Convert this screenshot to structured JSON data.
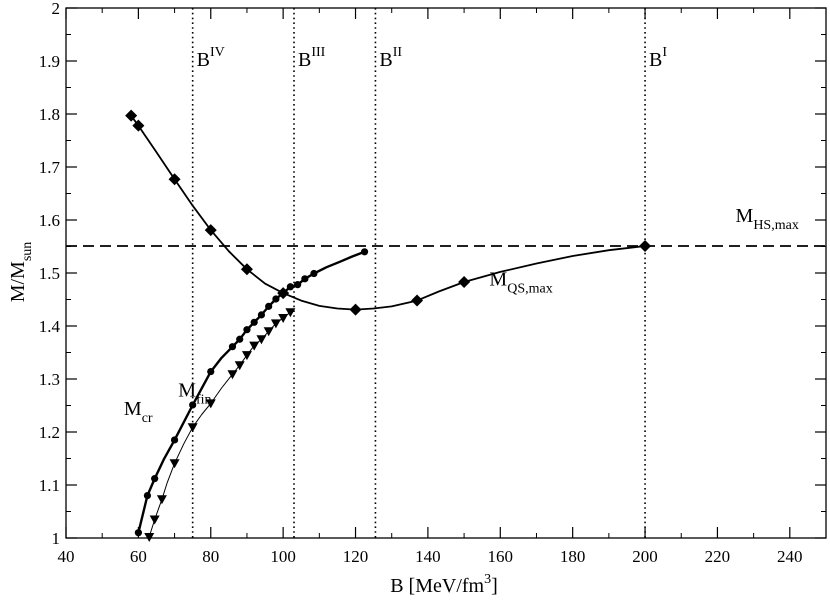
{
  "chart_data": {
    "type": "line",
    "xlabel": "B [MeV/fm",
    "xlabel_sup": "3",
    "xlabel_close": "]",
    "ylabel": "M/M",
    "ylabel_sub": "sun",
    "xlim": [
      40,
      250
    ],
    "ylim": [
      1.0,
      2.0
    ],
    "xticks": [
      40,
      60,
      80,
      100,
      120,
      140,
      160,
      180,
      200,
      220,
      240
    ],
    "yticks": [
      1,
      1.1,
      1.2,
      1.3,
      1.4,
      1.5,
      1.6,
      1.7,
      1.8,
      1.9,
      2
    ],
    "grid": false,
    "reference_lines": {
      "horizontal": {
        "y": 1.551,
        "style": "dashed",
        "label": "M",
        "label_sub": "HS,max"
      },
      "vertical": [
        {
          "x": 75,
          "label": "B",
          "label_sup": "IV"
        },
        {
          "x": 103,
          "label": "B",
          "label_sup": "III"
        },
        {
          "x": 125.5,
          "label": "B",
          "label_sup": "II"
        },
        {
          "x": 200,
          "label": "B",
          "label_sup": "I"
        }
      ]
    },
    "series": [
      {
        "name": "M_QS,max",
        "label": "M",
        "label_sub": "QS,max",
        "marker": "diamond",
        "markers": [
          {
            "x": 58,
            "y": 1.797
          },
          {
            "x": 60,
            "y": 1.778
          },
          {
            "x": 70,
            "y": 1.677
          },
          {
            "x": 80,
            "y": 1.581
          },
          {
            "x": 90,
            "y": 1.507
          },
          {
            "x": 100,
            "y": 1.462
          },
          {
            "x": 120,
            "y": 1.431
          },
          {
            "x": 137,
            "y": 1.448
          },
          {
            "x": 150,
            "y": 1.483
          },
          {
            "x": 200,
            "y": 1.551
          }
        ],
        "curve": [
          [
            58,
            1.797
          ],
          [
            60,
            1.778
          ],
          [
            65,
            1.728
          ],
          [
            70,
            1.677
          ],
          [
            75,
            1.627
          ],
          [
            80,
            1.581
          ],
          [
            85,
            1.541
          ],
          [
            90,
            1.507
          ],
          [
            95,
            1.48
          ],
          [
            100,
            1.462
          ],
          [
            105,
            1.448
          ],
          [
            110,
            1.438
          ],
          [
            115,
            1.433
          ],
          [
            120,
            1.431
          ],
          [
            125,
            1.433
          ],
          [
            130,
            1.437
          ],
          [
            137,
            1.448
          ],
          [
            143,
            1.465
          ],
          [
            150,
            1.483
          ],
          [
            160,
            1.502
          ],
          [
            170,
            1.518
          ],
          [
            180,
            1.532
          ],
          [
            190,
            1.543
          ],
          [
            200,
            1.551
          ]
        ]
      },
      {
        "name": "M_cr",
        "label": "M",
        "label_sub": "cr",
        "marker": "circle",
        "markers": [
          {
            "x": 60,
            "y": 1.01
          },
          {
            "x": 62.5,
            "y": 1.08
          },
          {
            "x": 64.5,
            "y": 1.112
          },
          {
            "x": 70,
            "y": 1.185
          },
          {
            "x": 75,
            "y": 1.251
          },
          {
            "x": 80,
            "y": 1.314
          },
          {
            "x": 86,
            "y": 1.361
          },
          {
            "x": 88,
            "y": 1.375
          },
          {
            "x": 90,
            "y": 1.393
          },
          {
            "x": 92,
            "y": 1.407
          },
          {
            "x": 94,
            "y": 1.421
          },
          {
            "x": 96,
            "y": 1.437
          },
          {
            "x": 98,
            "y": 1.451
          },
          {
            "x": 100,
            "y": 1.462
          },
          {
            "x": 102,
            "y": 1.474
          },
          {
            "x": 104,
            "y": 1.478
          },
          {
            "x": 106,
            "y": 1.489
          },
          {
            "x": 108.5,
            "y": 1.499
          },
          {
            "x": 122.5,
            "y": 1.54
          }
        ],
        "curve": [
          [
            60,
            1.01
          ],
          [
            62.5,
            1.08
          ],
          [
            64.5,
            1.112
          ],
          [
            67,
            1.148
          ],
          [
            70,
            1.185
          ],
          [
            75,
            1.251
          ],
          [
            80,
            1.314
          ],
          [
            83,
            1.34
          ],
          [
            86,
            1.361
          ],
          [
            88,
            1.375
          ],
          [
            90,
            1.393
          ],
          [
            92,
            1.407
          ],
          [
            94,
            1.421
          ],
          [
            96,
            1.437
          ],
          [
            98,
            1.451
          ],
          [
            100,
            1.462
          ],
          [
            102,
            1.474
          ],
          [
            104,
            1.478
          ],
          [
            106,
            1.489
          ],
          [
            108.5,
            1.499
          ],
          [
            112,
            1.511
          ],
          [
            116,
            1.522
          ],
          [
            119,
            1.531
          ],
          [
            122.5,
            1.54
          ]
        ]
      },
      {
        "name": "M_fin",
        "label": "M",
        "label_sub": "fin",
        "marker": "triangle-down",
        "markers": [
          {
            "x": 63,
            "y": 1.002
          },
          {
            "x": 64.5,
            "y": 1.035
          },
          {
            "x": 66.5,
            "y": 1.073
          },
          {
            "x": 70,
            "y": 1.141
          },
          {
            "x": 75,
            "y": 1.209
          },
          {
            "x": 80,
            "y": 1.254
          },
          {
            "x": 86,
            "y": 1.309
          },
          {
            "x": 88,
            "y": 1.326
          },
          {
            "x": 90,
            "y": 1.345
          },
          {
            "x": 92,
            "y": 1.363
          },
          {
            "x": 94,
            "y": 1.375
          },
          {
            "x": 96,
            "y": 1.39
          },
          {
            "x": 98,
            "y": 1.405
          },
          {
            "x": 100,
            "y": 1.415
          },
          {
            "x": 102,
            "y": 1.426
          }
        ],
        "curve": [
          [
            63,
            1.002
          ],
          [
            64.5,
            1.035
          ],
          [
            66.5,
            1.073
          ],
          [
            68,
            1.105
          ],
          [
            70,
            1.141
          ],
          [
            72.5,
            1.177
          ],
          [
            75,
            1.209
          ],
          [
            77.5,
            1.233
          ],
          [
            80,
            1.254
          ],
          [
            83,
            1.283
          ],
          [
            86,
            1.309
          ],
          [
            88,
            1.326
          ],
          [
            90,
            1.345
          ],
          [
            92,
            1.363
          ],
          [
            94,
            1.375
          ],
          [
            96,
            1.39
          ],
          [
            98,
            1.405
          ],
          [
            100,
            1.415
          ],
          [
            102,
            1.426
          ]
        ]
      }
    ],
    "annotations": [
      {
        "name": "label-m-cr",
        "text": "M",
        "sub": "cr",
        "x": 56,
        "y": 1.232
      },
      {
        "name": "label-m-fin",
        "text": "M",
        "sub": "fin",
        "x": 71,
        "y": 1.267
      },
      {
        "name": "label-m-qs-max",
        "text": "M",
        "sub": "QS,max",
        "x": 157,
        "y": 1.476
      },
      {
        "name": "label-m-hs-max",
        "text": "M",
        "sub": "HS,max",
        "x": 225,
        "y": 1.596
      }
    ]
  }
}
